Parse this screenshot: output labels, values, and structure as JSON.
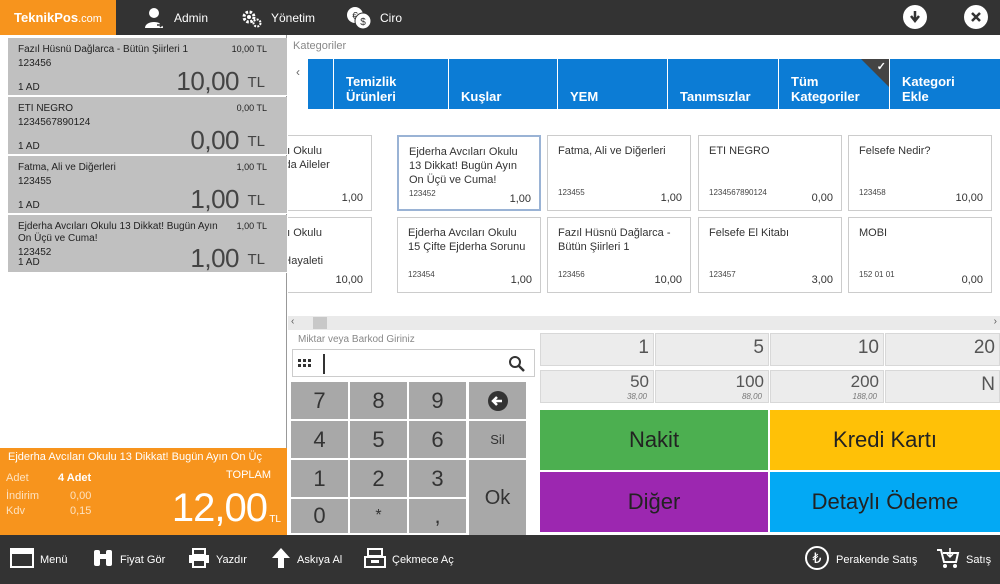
{
  "brand": {
    "name": "TeknikPos",
    "domain": ".com"
  },
  "topnav": {
    "admin": "Admin",
    "yonetim": "Yönetim",
    "ciro": "Ciro"
  },
  "cart": {
    "items": [
      {
        "name": "Fazıl Hüsnü Dağlarca - Bütün Şiirleri 1",
        "code": "123456",
        "qty": "1 AD",
        "unit_price": "10,00 TL",
        "amount": "10,00",
        "currency": "TL"
      },
      {
        "name": "ETI NEGRO",
        "code": "1234567890124",
        "qty": "1 AD",
        "unit_price": "0,00 TL",
        "amount": "0,00",
        "currency": "TL"
      },
      {
        "name": "Fatma, Ali ve Diğerleri",
        "code": "123455",
        "qty": "1 AD",
        "unit_price": "1,00 TL",
        "amount": "1,00",
        "currency": "TL"
      },
      {
        "name": "Ejderha Avcıları Okulu 13 Dikkat! Bugün Ayın On Üçü ve Cuma!",
        "code": "123452",
        "qty": "1 AD",
        "unit_price": "1,00 TL",
        "amount": "1,00",
        "currency": "TL"
      }
    ]
  },
  "summary": {
    "title": "Ejderha Avcıları Okulu 13 Dikkat! Bugün Ayın On Üç",
    "adet_label": "Adet",
    "adet_value": "4 Adet",
    "toplam_label": "TOPLAM",
    "indirim_label": "İndirim",
    "indirim_value": "0,00",
    "kdv_label": "Kdv",
    "kdv_value": "0,15",
    "total": "12,00",
    "currency": "TL"
  },
  "categories": {
    "label": "Kategoriler",
    "tabs": [
      "Temizlik\nÜrünleri",
      "Kuşlar",
      "YEM",
      "Tanımsızlar",
      "Tüm\nKategoriler",
      "Kategori\nEkle"
    ]
  },
  "products": [
    {
      "name": "ha Avcıları Okulu\nvah! Eao'da Aileler",
      "code": "",
      "price": "1,00"
    },
    {
      "name": "Ejderha Avcıları Okulu\n13 Dikkat! Bugün Ayın\nOn Üçü ve Cuma!",
      "code": "123452",
      "price": "1,00"
    },
    {
      "name": "Fatma, Ali ve Diğerleri",
      "code": "123455",
      "price": "1,00"
    },
    {
      "name": "ETI NEGRO",
      "code": "1234567890124",
      "price": "0,00"
    },
    {
      "name": "Felsefe Nedir?",
      "code": "123458",
      "price": "10,00"
    },
    {
      "name": "ha Avcıları Okulu\n: Herbert\nntaşı'nın Hayaleti",
      "code": "",
      "price": "10,00"
    },
    {
      "name": "Ejderha Avcıları Okulu\n15 Çifte Ejderha Sorunu",
      "code": "123454",
      "price": "1,00"
    },
    {
      "name": "Fazıl Hüsnü Dağlarca -\nBütün Şiirleri 1",
      "code": "123456",
      "price": "10,00"
    },
    {
      "name": "Felsefe El Kitabı",
      "code": "123457",
      "price": "3,00"
    },
    {
      "name": "MOBI",
      "code": "152 01 01",
      "price": "0,00"
    }
  ],
  "barcode": {
    "label": "Miktar veya Barkod Giriniz",
    "value": ""
  },
  "keypad": {
    "k7": "7",
    "k8": "8",
    "k9": "9",
    "k4": "4",
    "k5": "5",
    "k6": "6",
    "k1": "1",
    "k2": "2",
    "k3": "3",
    "k0": "0",
    "kstar": "*",
    "kcomma": ",",
    "sil": "Sil",
    "ok": "Ok"
  },
  "amounts": [
    {
      "value": "1",
      "sub": ""
    },
    {
      "value": "5",
      "sub": ""
    },
    {
      "value": "10",
      "sub": ""
    },
    {
      "value": "20",
      "sub": ""
    },
    {
      "value": "50",
      "sub": "38,00"
    },
    {
      "value": "100",
      "sub": "88,00"
    },
    {
      "value": "200",
      "sub": "188,00"
    },
    {
      "value": "N",
      "sub": ""
    }
  ],
  "payment": {
    "nakit": "Nakit",
    "kredi": "Kredi Kartı",
    "diger": "Diğer",
    "detayli": "Detaylı Ödeme"
  },
  "payment_colors": {
    "nakit": "#4caf50",
    "kredi": "#ffc107",
    "diger": "#9c27b0",
    "detayli": "#03a9f4"
  },
  "bottombar": {
    "menu": "Menü",
    "fiyat_gor": "Fiyat Gör",
    "yazdir": "Yazdır",
    "askiya_al": "Askıya Al",
    "cekmece_ac": "Çekmece Aç",
    "perakende": "Perakende Satış",
    "satis": "Satış"
  }
}
